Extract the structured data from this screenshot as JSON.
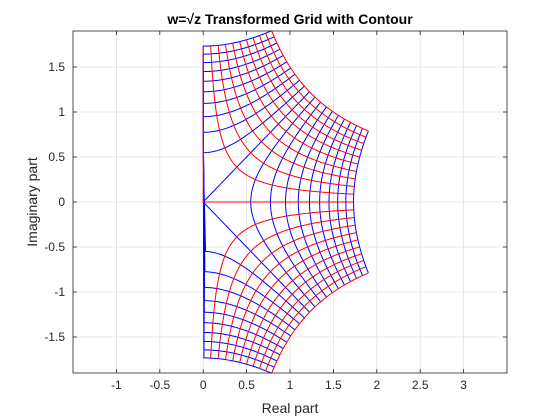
{
  "chart_data": {
    "type": "line",
    "title": "w=√z Transformed Grid with Contour",
    "xlabel": "Real part",
    "ylabel": "Imaginary part",
    "xlim": [
      -1.5,
      3.5
    ],
    "ylim": [
      -1.9,
      1.9
    ],
    "xticks": [
      -1,
      -0.5,
      0,
      0.5,
      1,
      1.5,
      2,
      2.5,
      3
    ],
    "xtick_labels": [
      "-1",
      "-0.5",
      "0",
      "0.5",
      "1",
      "1.5",
      "2",
      "2.5",
      "3"
    ],
    "yticks": [
      -1.5,
      -1,
      -0.5,
      0,
      0.5,
      1,
      1.5
    ],
    "ytick_labels": [
      "-1.5",
      "-1",
      "-0.5",
      "0",
      "0.5",
      "1",
      "1.5"
    ],
    "grid": true,
    "legend": "none",
    "series": [
      {
        "color": "#ff0000",
        "description": "images of constant-Im(z) grid lines under w = sqrt(z), z-grid spanning Re(z) in [-3, 3] and Im(z) in [-3, 3]"
      },
      {
        "color": "#0000ff",
        "description": "images of constant-Re(z) grid lines under w = sqrt(z)"
      }
    ],
    "transform": "w = sqrt(z)",
    "z_domain": {
      "re": [
        -3,
        3
      ],
      "im": [
        -3,
        3
      ],
      "grid_steps": 20
    }
  }
}
